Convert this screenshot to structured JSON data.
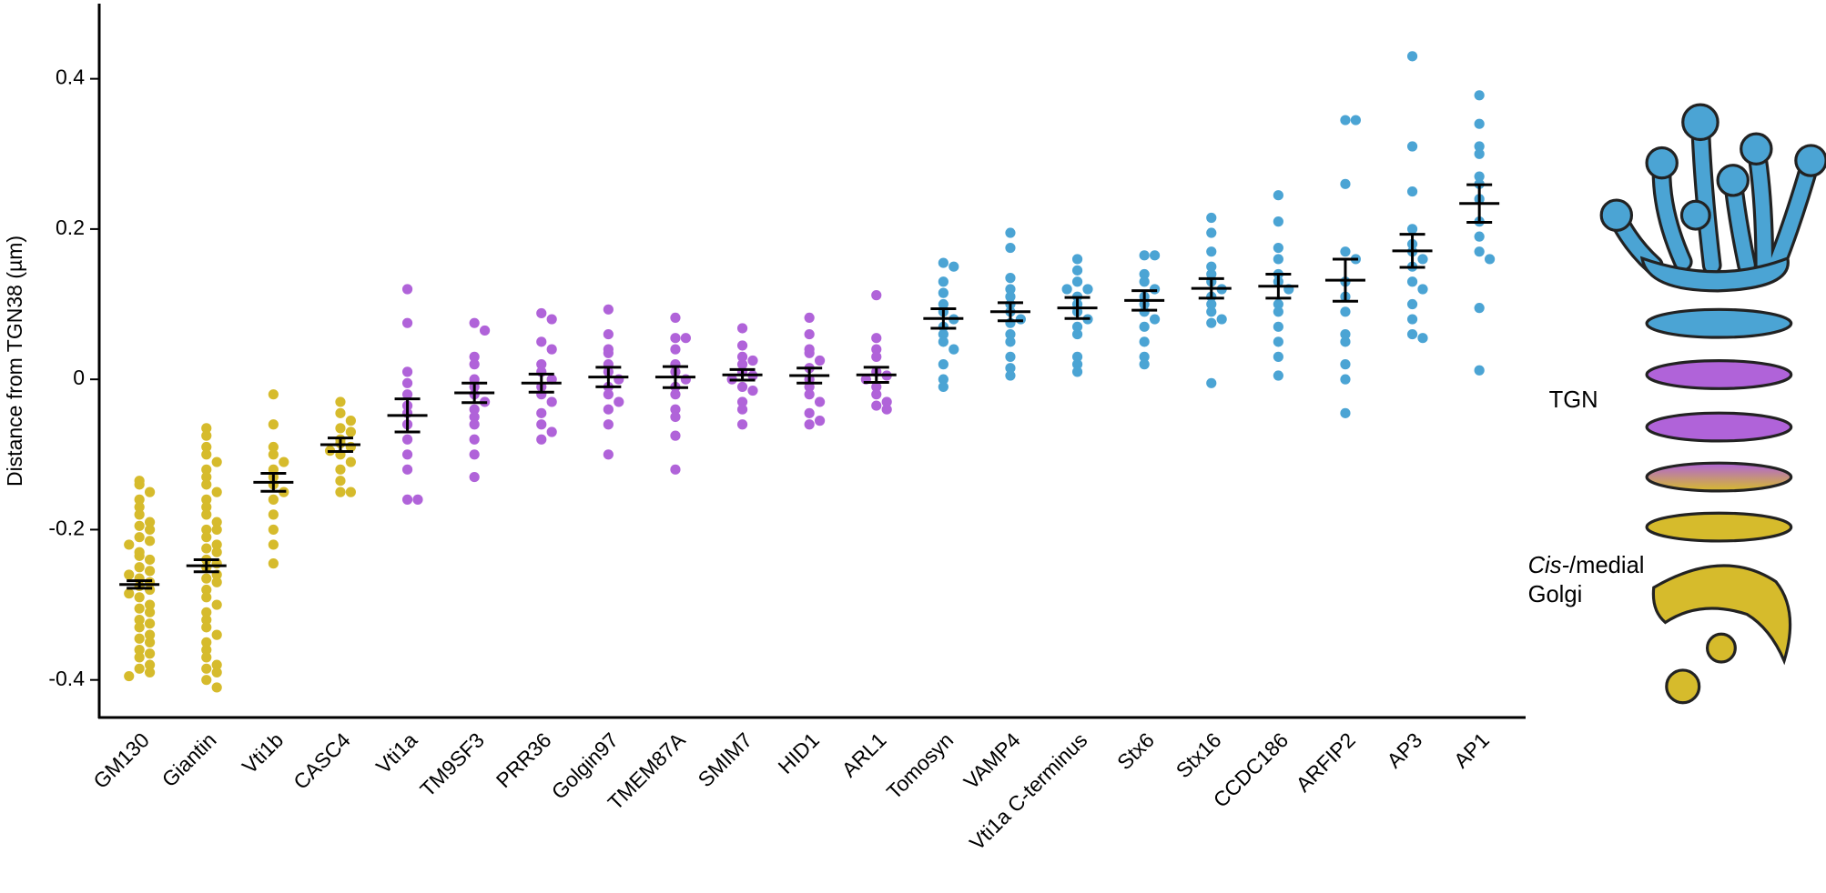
{
  "chart_data": {
    "type": "strip",
    "ylabel": "Distance from TGN38 (µm)",
    "ylim": [
      -0.45,
      0.5
    ],
    "yticks": [
      -0.4,
      -0.2,
      0,
      0.2,
      0.4
    ],
    "categories": [
      "GM130",
      "Giantin",
      "Vti1b",
      "CASC4",
      "Vti1a",
      "TM9SF3",
      "PRR36",
      "Golgin97",
      "TMEM87A",
      "SMIM7",
      "HID1",
      "ARL1",
      "Tomosyn",
      "VAMP4",
      "Vti1a C-terminus",
      "Stx6",
      "Stx16",
      "CCDC186",
      "ARFIP2",
      "AP3",
      "AP1"
    ],
    "colors": [
      "#d6bb2c",
      "#d6bb2c",
      "#d6bb2c",
      "#d6bb2c",
      "#b063d9",
      "#b063d9",
      "#b063d9",
      "#b063d9",
      "#b063d9",
      "#b063d9",
      "#b063d9",
      "#b063d9",
      "#4ba4d4",
      "#4ba4d4",
      "#4ba4d4",
      "#4ba4d4",
      "#4ba4d4",
      "#4ba4d4",
      "#4ba4d4",
      "#4ba4d4",
      "#4ba4d4"
    ],
    "points": [
      [
        -0.135,
        -0.14,
        -0.15,
        -0.16,
        -0.17,
        -0.18,
        -0.19,
        -0.195,
        -0.2,
        -0.21,
        -0.215,
        -0.22,
        -0.23,
        -0.235,
        -0.24,
        -0.25,
        -0.255,
        -0.26,
        -0.265,
        -0.27,
        -0.275,
        -0.28,
        -0.285,
        -0.29,
        -0.3,
        -0.305,
        -0.31,
        -0.32,
        -0.325,
        -0.33,
        -0.34,
        -0.345,
        -0.35,
        -0.36,
        -0.365,
        -0.37,
        -0.38,
        -0.385,
        -0.39,
        -0.395
      ],
      [
        -0.065,
        -0.075,
        -0.09,
        -0.1,
        -0.11,
        -0.12,
        -0.13,
        -0.14,
        -0.15,
        -0.16,
        -0.17,
        -0.18,
        -0.19,
        -0.2,
        -0.2,
        -0.21,
        -0.22,
        -0.225,
        -0.23,
        -0.24,
        -0.245,
        -0.25,
        -0.26,
        -0.265,
        -0.27,
        -0.28,
        -0.29,
        -0.3,
        -0.31,
        -0.32,
        -0.33,
        -0.34,
        -0.35,
        -0.36,
        -0.37,
        -0.38,
        -0.385,
        -0.39,
        -0.4,
        -0.41
      ],
      [
        -0.02,
        -0.06,
        -0.09,
        -0.1,
        -0.11,
        -0.12,
        -0.13,
        -0.14,
        -0.15,
        -0.16,
        -0.18,
        -0.2,
        -0.22,
        -0.245
      ],
      [
        -0.03,
        -0.045,
        -0.055,
        -0.065,
        -0.07,
        -0.08,
        -0.085,
        -0.09,
        -0.095,
        -0.1,
        -0.11,
        -0.12,
        -0.135,
        -0.15,
        -0.15
      ],
      [
        0.12,
        0.075,
        0.01,
        -0.005,
        -0.02,
        -0.035,
        -0.045,
        -0.06,
        -0.08,
        -0.1,
        -0.12,
        -0.16,
        -0.16
      ],
      [
        0.075,
        0.065,
        0.03,
        0.02,
        0.0,
        -0.01,
        -0.02,
        -0.03,
        -0.04,
        -0.05,
        -0.06,
        -0.08,
        -0.1,
        -0.13
      ],
      [
        0.088,
        0.08,
        0.05,
        0.04,
        0.02,
        0.01,
        0.0,
        -0.01,
        -0.02,
        -0.03,
        -0.045,
        -0.06,
        -0.07,
        -0.08
      ],
      [
        0.093,
        0.06,
        0.04,
        0.035,
        0.02,
        0.01,
        0.0,
        -0.01,
        -0.02,
        -0.03,
        -0.04,
        -0.06,
        -0.1
      ],
      [
        0.082,
        0.055,
        0.055,
        0.04,
        0.02,
        0.01,
        0.0,
        -0.01,
        -0.02,
        -0.04,
        -0.05,
        -0.075,
        -0.12
      ],
      [
        0.068,
        0.045,
        0.03,
        0.025,
        0.02,
        0.01,
        0.005,
        0.0,
        -0.01,
        -0.015,
        -0.03,
        -0.04,
        -0.06
      ],
      [
        0.082,
        0.06,
        0.04,
        0.035,
        0.025,
        0.015,
        0.0,
        -0.01,
        -0.02,
        -0.03,
        -0.045,
        -0.055,
        -0.06
      ],
      [
        0.112,
        0.055,
        0.04,
        0.03,
        0.01,
        0.005,
        0.0,
        -0.01,
        -0.02,
        -0.03,
        -0.035,
        -0.04
      ],
      [
        0.155,
        0.15,
        0.13,
        0.115,
        0.1,
        0.09,
        0.08,
        0.07,
        0.06,
        0.05,
        0.04,
        0.02,
        0.0,
        -0.01
      ],
      [
        0.195,
        0.175,
        0.135,
        0.12,
        0.11,
        0.1,
        0.09,
        0.08,
        0.075,
        0.06,
        0.05,
        0.03,
        0.015,
        0.005
      ],
      [
        0.16,
        0.145,
        0.13,
        0.12,
        0.12,
        0.11,
        0.1,
        0.09,
        0.08,
        0.07,
        0.06,
        0.03,
        0.02,
        0.01
      ],
      [
        0.165,
        0.165,
        0.14,
        0.13,
        0.12,
        0.11,
        0.1,
        0.09,
        0.08,
        0.07,
        0.05,
        0.03,
        0.02
      ],
      [
        0.215,
        0.195,
        0.17,
        0.15,
        0.14,
        0.13,
        0.12,
        0.11,
        0.1,
        0.09,
        0.08,
        0.075,
        -0.005
      ],
      [
        0.245,
        0.21,
        0.175,
        0.16,
        0.14,
        0.13,
        0.12,
        0.1,
        0.09,
        0.07,
        0.05,
        0.03,
        0.005
      ],
      [
        0.345,
        0.345,
        0.26,
        0.17,
        0.16,
        0.13,
        0.11,
        0.09,
        0.06,
        0.05,
        0.02,
        0.0,
        -0.045
      ],
      [
        0.43,
        0.31,
        0.25,
        0.2,
        0.18,
        0.17,
        0.16,
        0.15,
        0.13,
        0.12,
        0.1,
        0.08,
        0.06,
        0.055
      ],
      [
        0.378,
        0.34,
        0.31,
        0.3,
        0.27,
        0.26,
        0.24,
        0.21,
        0.19,
        0.17,
        0.16,
        0.095,
        0.012
      ]
    ],
    "means": [
      -0.273,
      -0.248,
      -0.137,
      -0.087,
      -0.048,
      -0.018,
      -0.005,
      0.003,
      0.003,
      0.006,
      0.005,
      0.006,
      0.081,
      0.09,
      0.095,
      0.105,
      0.121,
      0.124,
      0.132,
      0.171,
      0.234
    ],
    "errors": [
      0.005,
      0.008,
      0.012,
      0.009,
      0.022,
      0.013,
      0.012,
      0.013,
      0.014,
      0.007,
      0.01,
      0.01,
      0.013,
      0.012,
      0.014,
      0.013,
      0.013,
      0.016,
      0.028,
      0.022,
      0.025
    ],
    "annotations": [
      "TGN",
      "Cis-",
      "/medial",
      "Golgi"
    ]
  }
}
